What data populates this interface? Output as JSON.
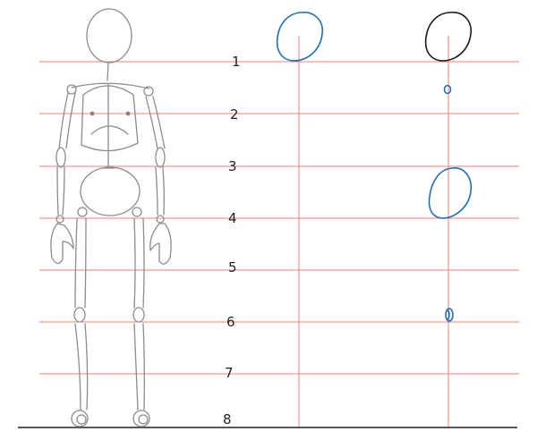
{
  "scale_labels": [
    "1",
    "2",
    "3",
    "4",
    "5",
    "6",
    "7",
    "8"
  ],
  "colors": {
    "guide_line": "#f08070",
    "sketch": "#8c8c8c",
    "blue_shape": "#1e6fb8",
    "black_shape": "#1a1a1a",
    "ground": "#222222"
  }
}
